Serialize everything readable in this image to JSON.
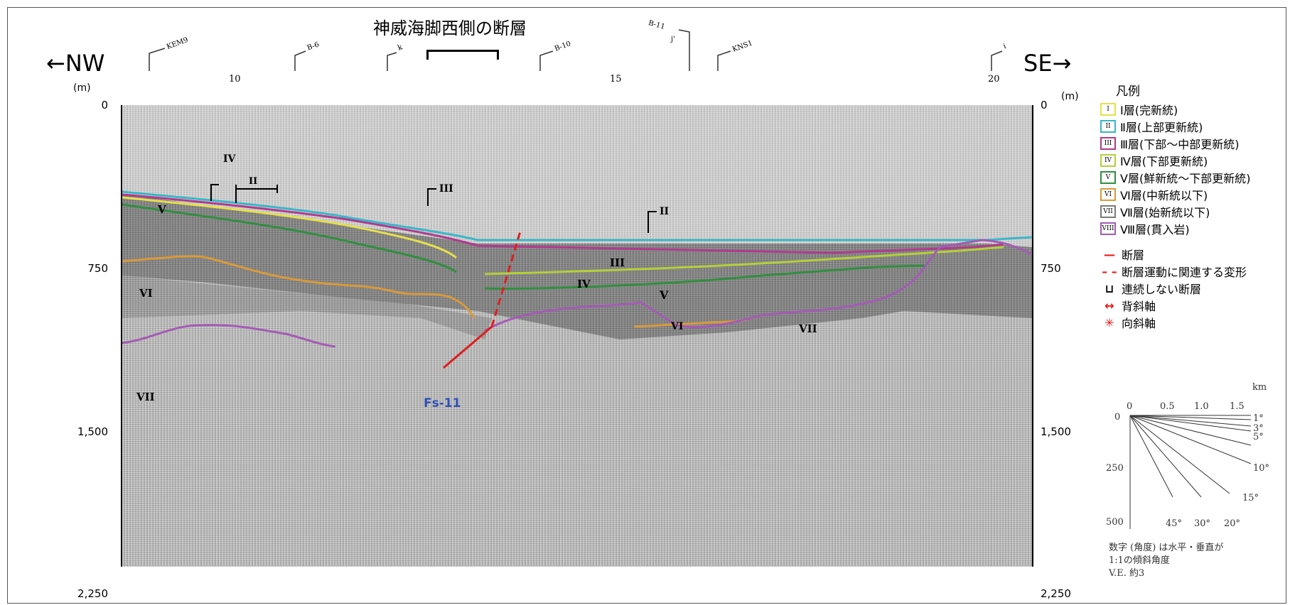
{
  "title": "神威海脚西側の断層",
  "direction_left": "←NW",
  "direction_right": "SE→",
  "depth_unit": "(m)",
  "y_axis": {
    "ticks": [
      "0",
      "750",
      "1,500",
      "2,250"
    ]
  },
  "x_axis": {
    "ticks": [
      "10",
      "15",
      "20"
    ]
  },
  "boreholes": [
    "KEM9",
    "B-6",
    "k",
    "B-10",
    "B-11",
    "j'",
    "KNS1",
    "i"
  ],
  "fault_label": "Fs-11",
  "layer_labels": {
    "l1": "IV",
    "l2": "II",
    "l3": "V",
    "l4": "III",
    "l5": "II",
    "l6": "III",
    "l7": "IV",
    "l8": "VI",
    "l9": "V",
    "l10": "VI",
    "l11": "VII",
    "l12": "VII"
  },
  "legend": {
    "title": "凡例",
    "layers": [
      {
        "mark": "I",
        "label": "Ⅰ層(完新統)",
        "color": "#e6e04a"
      },
      {
        "mark": "II",
        "label": "Ⅱ層(上部更新統)",
        "color": "#3ab6c8"
      },
      {
        "mark": "III",
        "label": "Ⅲ層(下部～中部更新統)",
        "color": "#b03a8e"
      },
      {
        "mark": "IV",
        "label": "Ⅳ層(下部更新統)",
        "color": "#b5cf3a"
      },
      {
        "mark": "V",
        "label": "Ⅴ層(鮮新統～下部更新統)",
        "color": "#2f8f3e"
      },
      {
        "mark": "VI",
        "label": "Ⅵ層(中新統以下)",
        "color": "#d99a3a"
      },
      {
        "mark": "VII",
        "label": "Ⅶ層(始新統以下)",
        "color": "#7a7a7a"
      },
      {
        "mark": "VIII",
        "label": "Ⅷ層(貫入岩)",
        "color": "#a45bb5"
      }
    ],
    "symbols": [
      {
        "symbol": "—",
        "label": "断層"
      },
      {
        "symbol": "– –",
        "label": "断層運動に関連する変形"
      },
      {
        "symbol": "⊔",
        "label": "連続しない断層"
      },
      {
        "symbol": "↔",
        "label": "背斜軸"
      },
      {
        "symbol": "✳",
        "label": "向斜軸"
      }
    ]
  },
  "scale": {
    "km_label": "km",
    "h_ticks": [
      "0",
      "0.5",
      "1.0",
      "1.5"
    ],
    "v_ticks": [
      "0",
      "250",
      "500"
    ],
    "angles": [
      "1°",
      "3°",
      "5°",
      "10°",
      "15°",
      "20°",
      "30°",
      "45°"
    ],
    "note_line1": "数字 (角度) は水平・垂直が",
    "note_line2": "1:1の傾斜角度",
    "note_line3": "V.E.  約3"
  },
  "colors": {
    "layer_I": "#e6e04a",
    "layer_II": "#3ab6c8",
    "layer_III": "#b03a8e",
    "layer_IV": "#b5cf3a",
    "layer_V": "#2f8f3e",
    "layer_VI": "#d99a3a",
    "layer_VIII": "#a45bb5",
    "fault": "#e11d1d",
    "fault_label": "#2f4fb5"
  }
}
